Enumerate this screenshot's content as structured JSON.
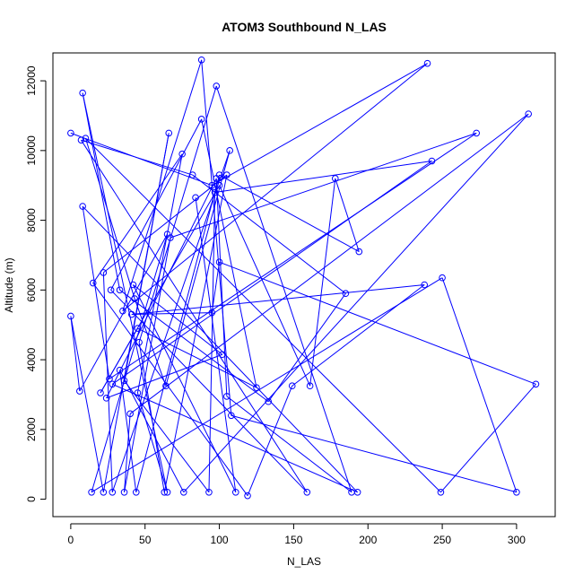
{
  "chart_data": {
    "type": "line",
    "title": "ATOM3 Southbound N_LAS",
    "xlabel": "N_LAS",
    "ylabel": "Altitude (m)",
    "xlim": [
      -12,
      326
    ],
    "ylim": [
      -500,
      12800
    ],
    "x_ticks": [
      0,
      50,
      100,
      150,
      200,
      250,
      300
    ],
    "y_ticks": [
      0,
      2000,
      4000,
      6000,
      8000,
      10000,
      12000
    ],
    "x_tick_labels": [
      "0",
      "50",
      "100",
      "150",
      "200",
      "250",
      "300"
    ],
    "y_tick_labels": [
      "0",
      "2000",
      "4000",
      "6000",
      "8000",
      "10000",
      "12000"
    ],
    "series_color": "#0000ff",
    "marker": "open-circle",
    "grid": false,
    "points": [
      {
        "x": 0,
        "y": 10500
      },
      {
        "x": 95,
        "y": 9000
      },
      {
        "x": 240,
        "y": 12500
      },
      {
        "x": 35,
        "y": 5400
      },
      {
        "x": 88,
        "y": 12600
      },
      {
        "x": 108,
        "y": 2400
      },
      {
        "x": 300,
        "y": 200
      },
      {
        "x": 250,
        "y": 6350
      },
      {
        "x": 14,
        "y": 200
      },
      {
        "x": 65,
        "y": 7600
      },
      {
        "x": 6,
        "y": 3100
      },
      {
        "x": 0,
        "y": 5250
      },
      {
        "x": 22,
        "y": 200
      },
      {
        "x": 66,
        "y": 10500
      },
      {
        "x": 36,
        "y": 3400
      },
      {
        "x": 93,
        "y": 200
      },
      {
        "x": 97,
        "y": 8800
      },
      {
        "x": 243,
        "y": 9700
      },
      {
        "x": 28,
        "y": 3300
      },
      {
        "x": 193,
        "y": 200
      },
      {
        "x": 8,
        "y": 8400
      },
      {
        "x": 26,
        "y": 3450
      },
      {
        "x": 273,
        "y": 10500
      },
      {
        "x": 67,
        "y": 7500
      },
      {
        "x": 36,
        "y": 200
      },
      {
        "x": 40,
        "y": 2450
      },
      {
        "x": 308,
        "y": 11050
      },
      {
        "x": 76,
        "y": 200
      },
      {
        "x": 33,
        "y": 3700
      },
      {
        "x": 44,
        "y": 200
      },
      {
        "x": 100,
        "y": 9300
      },
      {
        "x": 194,
        "y": 7100
      },
      {
        "x": 178,
        "y": 9200
      },
      {
        "x": 161,
        "y": 3250
      },
      {
        "x": 100,
        "y": 9000
      },
      {
        "x": 20,
        "y": 3050
      },
      {
        "x": 45,
        "y": 4900
      },
      {
        "x": 125,
        "y": 3200
      },
      {
        "x": 88,
        "y": 10900
      },
      {
        "x": 27,
        "y": 6000
      },
      {
        "x": 159,
        "y": 200
      },
      {
        "x": 7,
        "y": 10300
      },
      {
        "x": 82,
        "y": 9300
      },
      {
        "x": 185,
        "y": 5900
      },
      {
        "x": 133,
        "y": 2800
      },
      {
        "x": 33,
        "y": 6000
      },
      {
        "x": 8,
        "y": 11650
      },
      {
        "x": 65,
        "y": 200
      },
      {
        "x": 45,
        "y": 3050
      },
      {
        "x": 75,
        "y": 9900
      },
      {
        "x": 15,
        "y": 6200
      },
      {
        "x": 119,
        "y": 100
      },
      {
        "x": 149,
        "y": 3250
      },
      {
        "x": 238,
        "y": 6150
      },
      {
        "x": 41,
        "y": 5300
      },
      {
        "x": 95,
        "y": 5350
      },
      {
        "x": 100,
        "y": 6800
      },
      {
        "x": 313,
        "y": 3300
      },
      {
        "x": 249,
        "y": 200
      },
      {
        "x": 10,
        "y": 10350
      },
      {
        "x": 43,
        "y": 5750
      },
      {
        "x": 64,
        "y": 3250
      },
      {
        "x": 107,
        "y": 10000
      },
      {
        "x": 28,
        "y": 200
      },
      {
        "x": 22,
        "y": 6500
      },
      {
        "x": 105,
        "y": 9300
      },
      {
        "x": 63,
        "y": 200
      },
      {
        "x": 46,
        "y": 4500
      },
      {
        "x": 98,
        "y": 11850
      },
      {
        "x": 189,
        "y": 200
      },
      {
        "x": 105,
        "y": 2950
      },
      {
        "x": 98,
        "y": 9200
      },
      {
        "x": 24,
        "y": 2900
      },
      {
        "x": 102,
        "y": 4150
      },
      {
        "x": 42,
        "y": 6150
      },
      {
        "x": 111,
        "y": 200
      },
      {
        "x": 84,
        "y": 8650
      }
    ]
  }
}
